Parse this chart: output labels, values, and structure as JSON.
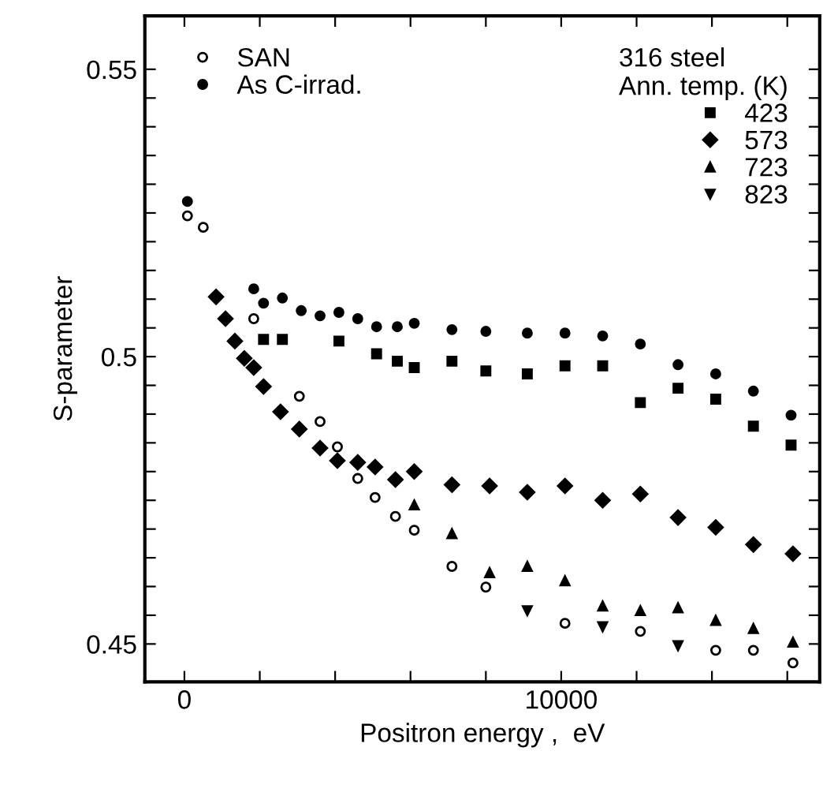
{
  "chart_data": {
    "type": "scatter",
    "xlabel": "Positron energy ,  eV",
    "ylabel": "S-parameter",
    "legend_title": "316 steel\nAnn. temp. (K)",
    "xlim": [
      -1050,
      16860
    ],
    "ylim": [
      0.4434,
      0.5593
    ],
    "xticks": [
      0,
      {
        "value": 2000,
        "label": null
      },
      {
        "value": 4000,
        "label": null
      },
      {
        "value": 6000,
        "label": null
      },
      {
        "value": 8000,
        "label": null
      },
      10000,
      {
        "value": 12000,
        "label": null
      },
      {
        "value": 14000,
        "label": null
      },
      {
        "value": 16000,
        "label": null
      }
    ],
    "yticks": [
      0.45,
      {
        "value": 0.455,
        "label": null
      },
      {
        "value": 0.46,
        "label": null
      },
      {
        "value": 0.465,
        "label": null
      },
      {
        "value": 0.47,
        "label": null
      },
      {
        "value": 0.475,
        "label": null
      },
      {
        "value": 0.48,
        "label": null
      },
      {
        "value": 0.485,
        "label": null
      },
      {
        "value": 0.49,
        "label": null
      },
      {
        "value": 0.495,
        "label": null
      },
      0.5,
      {
        "value": 0.505,
        "label": null
      },
      {
        "value": 0.51,
        "label": null
      },
      {
        "value": 0.515,
        "label": null
      },
      {
        "value": 0.52,
        "label": null
      },
      {
        "value": 0.525,
        "label": null
      },
      {
        "value": 0.53,
        "label": null
      },
      {
        "value": 0.535,
        "label": null
      },
      {
        "value": 0.54,
        "label": null
      },
      {
        "value": 0.545,
        "label": null
      },
      0.55
    ],
    "grid": false,
    "legend": "top left",
    "series": [
      {
        "name": "SAN",
        "color": "#ffffff",
        "marker": "circle",
        "x": [
          80,
          500,
          1840,
          3050,
          3600,
          4060,
          4600,
          5060,
          5600,
          6100,
          7100,
          8000,
          10100,
          12100,
          14100,
          15100,
          16150
        ],
        "values": [
          0.5245,
          0.5225,
          0.5066,
          0.4931,
          0.4887,
          0.4843,
          0.4788,
          0.4755,
          0.4722,
          0.4698,
          0.4635,
          0.4599,
          0.4536,
          0.4522,
          0.4489,
          0.4489,
          0.4467
        ]
      },
      {
        "name": "As C-irrad.",
        "color": "#000000",
        "marker": "circle",
        "x": [
          80,
          1840,
          2100,
          2600,
          3100,
          3600,
          4100,
          4600,
          5100,
          5650,
          6100,
          7100,
          8000,
          9100,
          10100,
          11100,
          12100,
          13100,
          14100,
          15100,
          16100
        ],
        "values": [
          0.527,
          0.5118,
          0.5093,
          0.5102,
          0.508,
          0.5071,
          0.5077,
          0.5066,
          0.5052,
          0.5052,
          0.5058,
          0.5047,
          0.5044,
          0.5041,
          0.5041,
          0.5036,
          0.5022,
          0.4986,
          0.497,
          0.494,
          0.4898
        ]
      },
      {
        "name": "423",
        "color": "#000000",
        "marker": "square",
        "x": [
          2100,
          2600,
          4100,
          5100,
          5650,
          6100,
          7100,
          8000,
          9100,
          10100,
          11100,
          12100,
          13100,
          14100,
          15100,
          16100
        ],
        "values": [
          0.503,
          0.503,
          0.5027,
          0.5005,
          0.4992,
          0.4981,
          0.4992,
          0.4975,
          0.497,
          0.4984,
          0.4984,
          0.492,
          0.4945,
          0.4926,
          0.4879,
          0.4846
        ]
      },
      {
        "name": "573",
        "color": "#000000",
        "marker": "diamond",
        "x": [
          840,
          1090,
          1340,
          1590,
          1840,
          2100,
          2550,
          3050,
          3600,
          4060,
          4600,
          5060,
          5600,
          6100,
          7100,
          8100,
          9100,
          10100,
          11100,
          12100,
          13100,
          14100,
          15100,
          16150
        ],
        "values": [
          0.5104,
          0.5066,
          0.5027,
          0.4997,
          0.4981,
          0.4948,
          0.4904,
          0.4874,
          0.4841,
          0.4819,
          0.4816,
          0.4808,
          0.4786,
          0.48,
          0.4777,
          0.4775,
          0.4764,
          0.4775,
          0.475,
          0.4761,
          0.472,
          0.4703,
          0.4673,
          0.4657
        ]
      },
      {
        "name": "723",
        "color": "#000000",
        "marker": "triangle",
        "x": [
          6100,
          7100,
          8100,
          9100,
          10100,
          11100,
          12100,
          13100,
          14100,
          15100,
          16150
        ],
        "values": [
          0.4742,
          0.4692,
          0.4624,
          0.4635,
          0.461,
          0.4566,
          0.4558,
          0.4563,
          0.4541,
          0.4527,
          0.4503
        ]
      },
      {
        "name": "823",
        "color": "#000000",
        "marker": "triangle_down",
        "x": [
          9100,
          11100,
          13100
        ],
        "values": [
          0.4558,
          0.453,
          0.4497
        ]
      }
    ]
  }
}
